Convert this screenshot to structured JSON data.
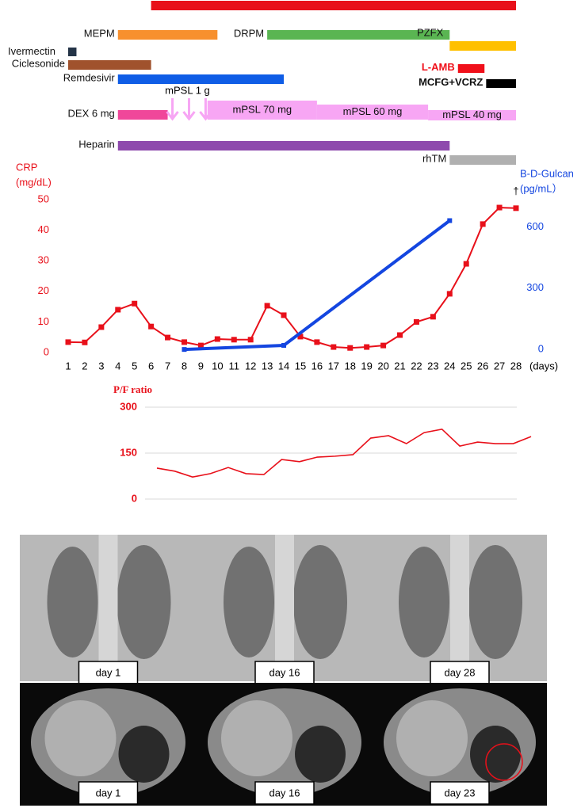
{
  "chart_data": [
    {
      "type": "gantt",
      "xlim": [
        1,
        28
      ],
      "items": [
        {
          "label": null,
          "start": 6,
          "end": 28,
          "color": "#e8101a"
        },
        {
          "label": "MEPM",
          "start": 4,
          "end": 10,
          "color": "#f7902e"
        },
        {
          "label": "DRPM",
          "start": 13,
          "end": 24,
          "color": "#5ab552"
        },
        {
          "label": "Ivermectin",
          "start": 1,
          "end": 1.5,
          "color": "#243447"
        },
        {
          "label": "PZFX",
          "start": 24,
          "end": 28,
          "color": "#ffc000"
        },
        {
          "label": "Ciclesonide",
          "start": 1,
          "end": 6,
          "color": "#a0522d"
        },
        {
          "label": "L-AMB",
          "start": 24.5,
          "end": 26.1,
          "color": "#f0101a"
        },
        {
          "label": "Remdesivir",
          "start": 4,
          "end": 14,
          "color": "#0f5de6"
        },
        {
          "label": "MCFG+VCRZ",
          "start": 26.2,
          "end": 28,
          "color": "#000000"
        },
        {
          "label": "DEX 6 mg",
          "start": 4,
          "end": 7,
          "color": "#f0479a"
        },
        {
          "label": "mPSL 70 mg",
          "start": 9.4,
          "end": 16,
          "color": "#f7a6f4"
        },
        {
          "label": "mPSL 60 mg",
          "start": 16,
          "end": 22.7,
          "color": "#f7a6f4"
        },
        {
          "label": "mPSL 40 mg",
          "start": 22.7,
          "end": 28,
          "color": "#f7a6f4"
        },
        {
          "label": "Heparin",
          "start": 4,
          "end": 24,
          "color": "#8e4aad"
        },
        {
          "label": "rhTM",
          "start": 24,
          "end": 28,
          "color": "#b0b0b0"
        }
      ],
      "pulses": {
        "label": "mPSL 1 g",
        "days": [
          7,
          8,
          9
        ],
        "color": "#f7a6f4"
      }
    },
    {
      "type": "line",
      "ylabel": [
        "CRP",
        "(mg/dL)"
      ],
      "y2label": [
        "B-D-Gulcan",
        "(pg/mL）"
      ],
      "x_label": "(days)",
      "annotation": "†",
      "xlim": [
        1,
        28
      ],
      "xticks": [
        1,
        2,
        3,
        4,
        5,
        6,
        7,
        8,
        9,
        10,
        11,
        12,
        13,
        14,
        15,
        16,
        17,
        18,
        19,
        20,
        21,
        22,
        23,
        24,
        25,
        26,
        27,
        28
      ],
      "ylim": [
        0,
        50
      ],
      "yticks": [
        0,
        10,
        20,
        30,
        40,
        50
      ],
      "y2lim": [
        0,
        750
      ],
      "y2ticks": [
        0,
        300,
        600
      ],
      "series": [
        {
          "name": "CRP",
          "color": "#e8101a",
          "x": [
            1,
            2,
            3,
            4,
            5,
            6,
            7,
            8,
            9,
            10,
            11,
            12,
            13,
            14,
            15,
            16,
            17,
            18,
            19,
            20,
            21,
            22,
            23,
            24,
            25,
            26,
            27,
            28
          ],
          "values": [
            3.4,
            3.3,
            8.3,
            14,
            16,
            8.5,
            4.9,
            3.4,
            2.3,
            4.4,
            4.2,
            4.2,
            15.3,
            12.2,
            5.2,
            3.4,
            1.8,
            1.5,
            1.8,
            2.3,
            5.7,
            10,
            11.7,
            19.2,
            29,
            42,
            47.4,
            47.2
          ]
        },
        {
          "name": "B-D-Gulcan",
          "color": "#1446e0",
          "axis": "y2",
          "x": [
            8,
            14,
            24
          ],
          "values": [
            15,
            35,
            647
          ]
        }
      ]
    },
    {
      "type": "line",
      "title": "P/F ratio",
      "ylim": [
        0,
        300
      ],
      "yticks": [
        0,
        150,
        300
      ],
      "grid": true,
      "color": "#e8101a",
      "values": [
        101,
        91,
        72,
        83,
        103,
        83,
        80,
        129,
        122,
        137,
        140,
        145,
        199,
        207,
        181,
        217,
        228,
        173,
        186,
        181,
        181,
        204
      ]
    }
  ],
  "images": {
    "xray": [
      "day 1",
      "day 16",
      "day 28"
    ],
    "ct": [
      "day 1",
      "day 16",
      "day 23"
    ]
  }
}
